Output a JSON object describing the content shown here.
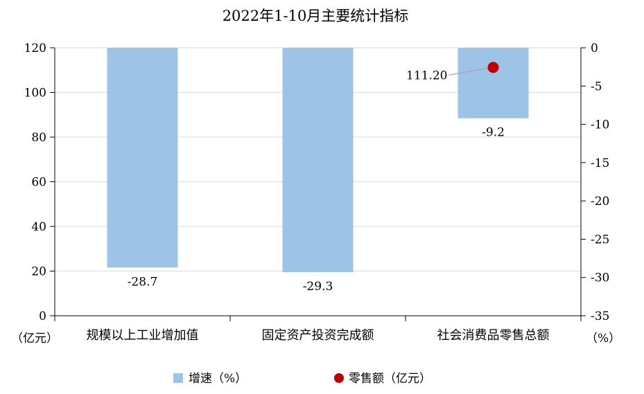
{
  "chart_data": {
    "type": "bar",
    "title": "2022年1-10月主要统计指标",
    "categories": [
      "规模以上工业增加值",
      "固定资产投资完成额",
      "社会消费品零售总额"
    ],
    "series": [
      {
        "name": "增速（%）",
        "type": "bar",
        "axis": "right",
        "values": [
          -28.7,
          -29.3,
          -9.2
        ],
        "labels": [
          "-28.7",
          "-29.3",
          "-9.2"
        ],
        "color": "#9dc3e6"
      },
      {
        "name": "零售额（亿元）",
        "type": "scatter",
        "axis": "left",
        "values": [
          null,
          null,
          111.2
        ],
        "labels": [
          "",
          "",
          "111.20"
        ],
        "color": "#c00000"
      }
    ],
    "y_left": {
      "unit_label": "（亿元）",
      "ylim": [
        0,
        120
      ],
      "ticks": [
        0,
        20,
        40,
        60,
        80,
        100,
        120
      ]
    },
    "y_right": {
      "unit_label": "（%）",
      "ylim": [
        -35,
        0
      ],
      "ticks": [
        0,
        -5,
        -10,
        -15,
        -20,
        -25,
        -30,
        -35
      ],
      "tick_labels": [
        "0",
        "-5",
        "-10",
        "-15",
        "-20",
        "-25",
        "-30",
        "-35"
      ]
    },
    "grid": true,
    "legend_position": "bottom"
  }
}
